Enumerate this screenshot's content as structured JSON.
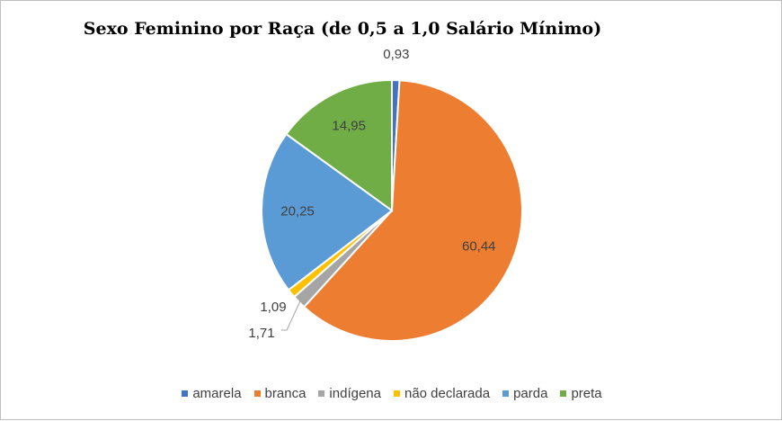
{
  "chart_data": {
    "type": "pie",
    "title": "Sexo Feminino por Raça (de 0,5 a 1,0 Salário Mínimo)",
    "legend_position": "bottom",
    "categories": [
      "amarela",
      "branca",
      "indígena",
      "não declarada",
      "parda",
      "preta"
    ],
    "values": [
      0.93,
      60.44,
      1.71,
      1.09,
      20.25,
      14.95
    ],
    "data_labels": [
      "0,93",
      "60,44",
      "1,71",
      "1,09",
      "20,25",
      "14,95"
    ],
    "colors": [
      "#4472C4",
      "#ED7D31",
      "#A5A5A5",
      "#FFC000",
      "#5B9BD5",
      "#70AD47"
    ]
  }
}
